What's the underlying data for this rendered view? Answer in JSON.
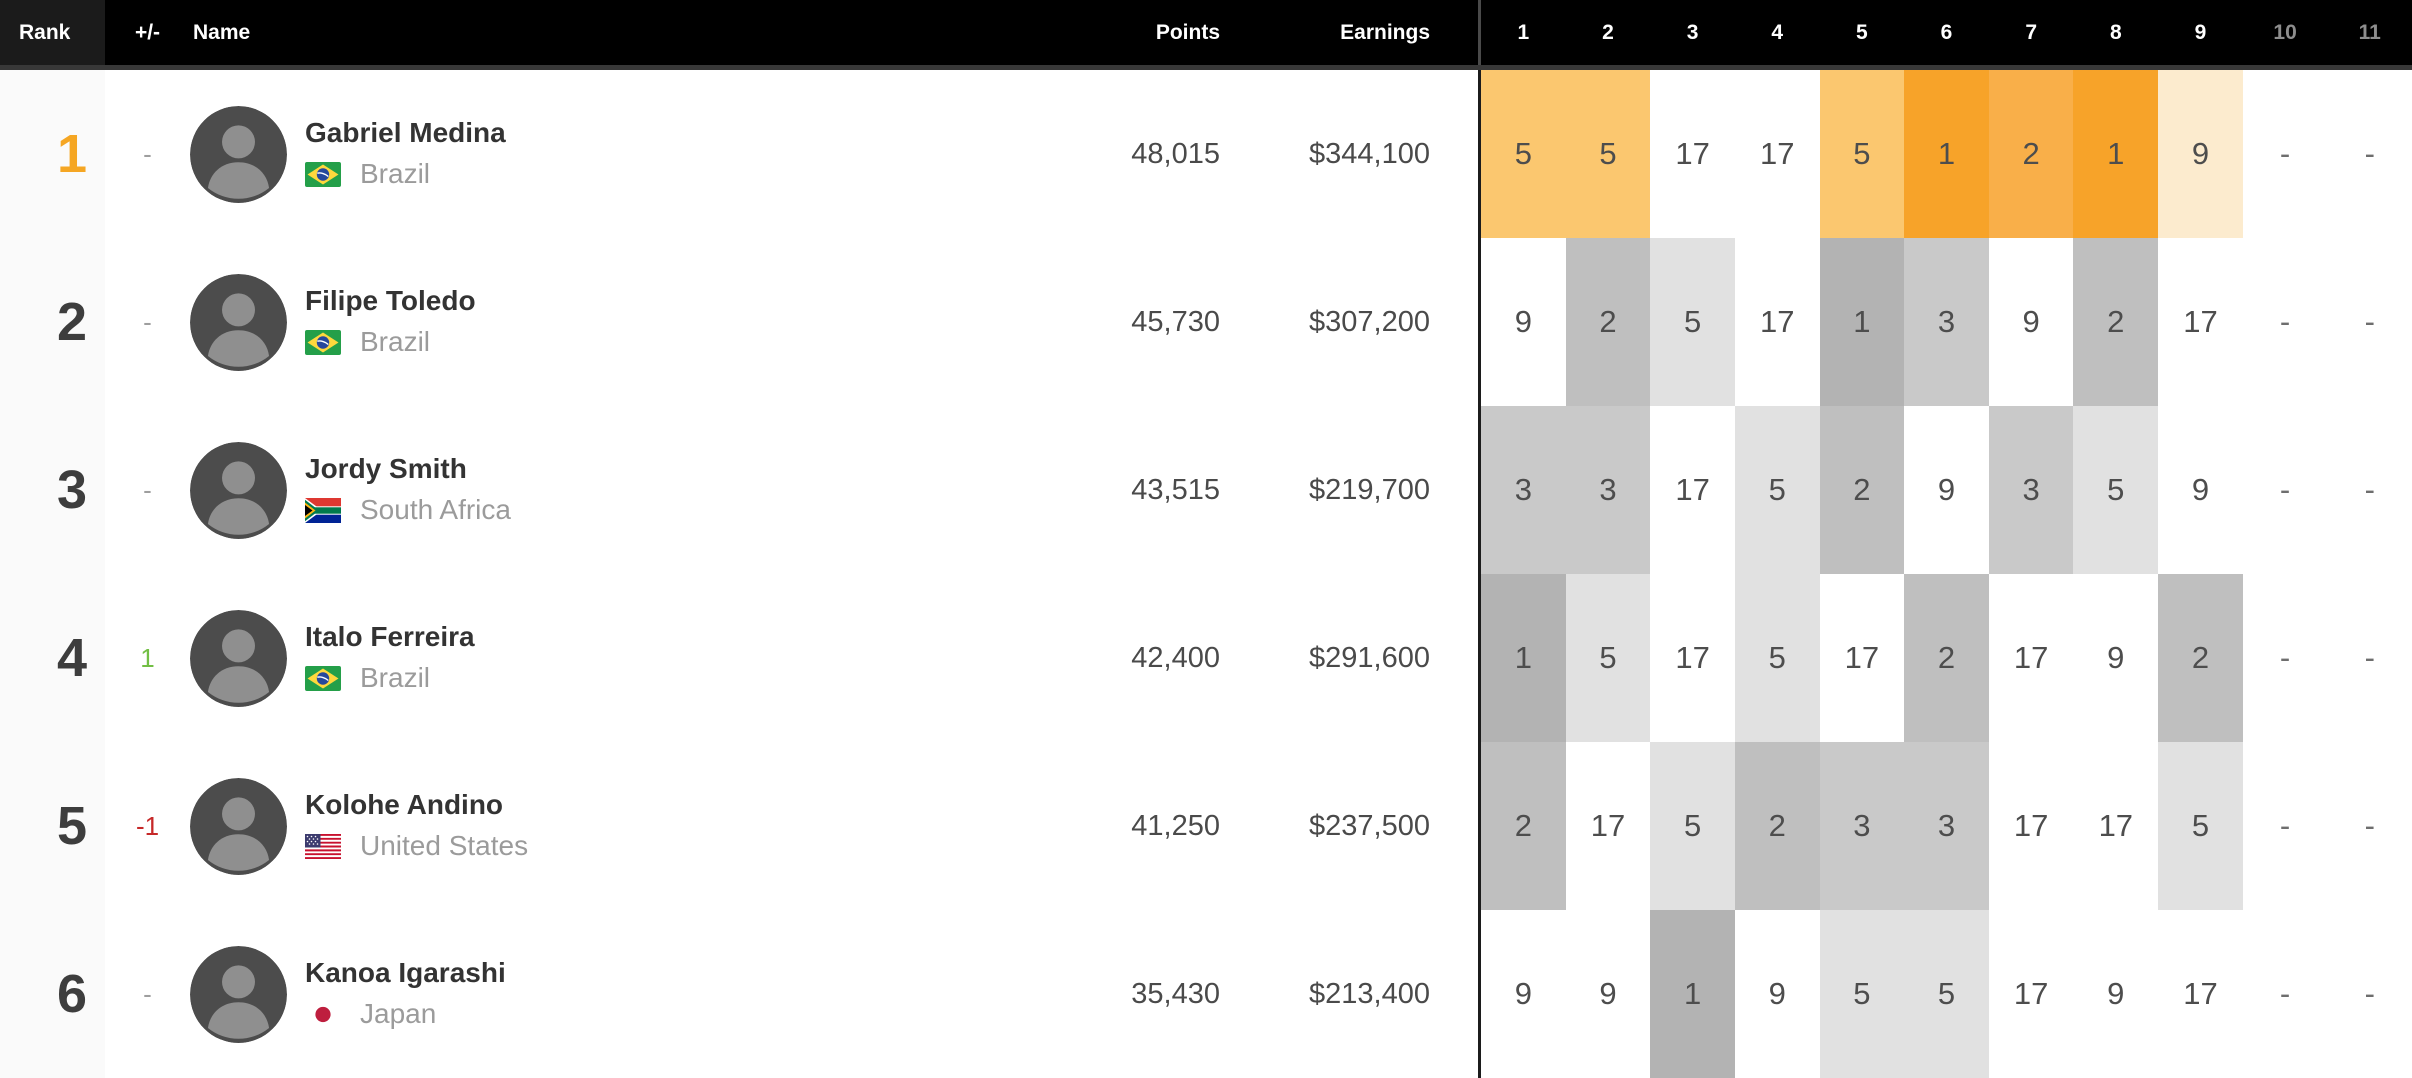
{
  "header": {
    "rank_label": "Rank",
    "change_label": "+/-",
    "name_label": "Name",
    "points_label": "Points",
    "earnings_label": "Earnings",
    "event_columns": [
      "1",
      "2",
      "3",
      "4",
      "5",
      "6",
      "7",
      "8",
      "9",
      "10",
      "11"
    ],
    "inactive_columns": [
      "10",
      "11"
    ]
  },
  "colors": {
    "header_bg": "#000000",
    "header_rank_bg": "#1b1b1b",
    "header_text": "#ffffff",
    "header_inactive_text": "#8d8d8d",
    "rank_column_bg": "#fafafa",
    "leader_rank_text": "#F5A623",
    "rank_text": "#3d3d3d",
    "change_up": "#72BF44",
    "change_down": "#C62828",
    "change_neutral": "#9e9e9e",
    "name_text": "#333333",
    "country_text": "#9b9b9b",
    "stat_text": "#4a4a4a",
    "event_value_text": "#4d4d4d",
    "empty_dash_text": "#6e6e6e",
    "divider": "#1c1c1c",
    "leader_scale": {
      "1": "#F7A329",
      "2": "#F9AF49",
      "3": "#FABB58",
      "5": "#FBC76F",
      "9": "#FCEBCE",
      "17": "#FFFFFF",
      "-": "#FFFFFF"
    },
    "normal_scale": {
      "1": "#B3B3B3",
      "2": "#BFBFBF",
      "3": "#C9C9C9",
      "5": "#E1E1E1",
      "9": "#FFFFFF",
      "17": "#FFFFFF",
      "-": "#FFFFFF"
    }
  },
  "rows": [
    {
      "rank": "1",
      "change": "-",
      "change_type": "neutral",
      "name": "Gabriel Medina",
      "country": "Brazil",
      "flag": "brazil",
      "points": "48,015",
      "earnings": "$344,100",
      "leader": true,
      "results": [
        "5",
        "5",
        "17",
        "17",
        "5",
        "1",
        "2",
        "1",
        "9",
        "-",
        "-"
      ]
    },
    {
      "rank": "2",
      "change": "-",
      "change_type": "neutral",
      "name": "Filipe Toledo",
      "country": "Brazil",
      "flag": "brazil",
      "points": "45,730",
      "earnings": "$307,200",
      "leader": false,
      "results": [
        "9",
        "2",
        "5",
        "17",
        "1",
        "3",
        "9",
        "2",
        "17",
        "-",
        "-"
      ]
    },
    {
      "rank": "3",
      "change": "-",
      "change_type": "neutral",
      "name": "Jordy Smith",
      "country": "South Africa",
      "flag": "south-africa",
      "points": "43,515",
      "earnings": "$219,700",
      "leader": false,
      "results": [
        "3",
        "3",
        "17",
        "5",
        "2",
        "9",
        "3",
        "5",
        "9",
        "-",
        "-"
      ]
    },
    {
      "rank": "4",
      "change": "1",
      "change_type": "up",
      "name": "Italo Ferreira",
      "country": "Brazil",
      "flag": "brazil",
      "points": "42,400",
      "earnings": "$291,600",
      "leader": false,
      "results": [
        "1",
        "5",
        "17",
        "5",
        "17",
        "2",
        "17",
        "9",
        "2",
        "-",
        "-"
      ]
    },
    {
      "rank": "5",
      "change": "-1",
      "change_type": "down",
      "name": "Kolohe Andino",
      "country": "United States",
      "flag": "united-states",
      "points": "41,250",
      "earnings": "$237,500",
      "leader": false,
      "results": [
        "2",
        "17",
        "5",
        "2",
        "3",
        "3",
        "17",
        "17",
        "5",
        "-",
        "-"
      ]
    },
    {
      "rank": "6",
      "change": "-",
      "change_type": "neutral",
      "name": "Kanoa Igarashi",
      "country": "Japan",
      "flag": "japan",
      "points": "35,430",
      "earnings": "$213,400",
      "leader": false,
      "results": [
        "9",
        "9",
        "1",
        "9",
        "5",
        "5",
        "17",
        "9",
        "17",
        "-",
        "-"
      ]
    }
  ]
}
